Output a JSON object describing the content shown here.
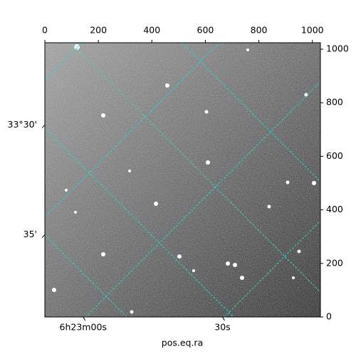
{
  "chart_data": {
    "type": "image",
    "xlabel": "pos.eq.ra",
    "xlim": [
      0,
      1030
    ],
    "xticks": [
      0,
      200,
      400,
      600,
      800,
      1000
    ],
    "ylim": [
      0,
      1024
    ],
    "yticks": [
      0,
      200,
      400,
      600,
      800,
      1000
    ],
    "wcs_xticks": [
      {
        "value": 143,
        "label": "6h23m00s"
      },
      {
        "value": 664,
        "label": "30s"
      }
    ],
    "wcs_yticks": [
      {
        "value": 717,
        "label": "33°30'"
      },
      {
        "value": 307,
        "label": "35'"
      }
    ],
    "grid_color": "#2ad4d4"
  }
}
